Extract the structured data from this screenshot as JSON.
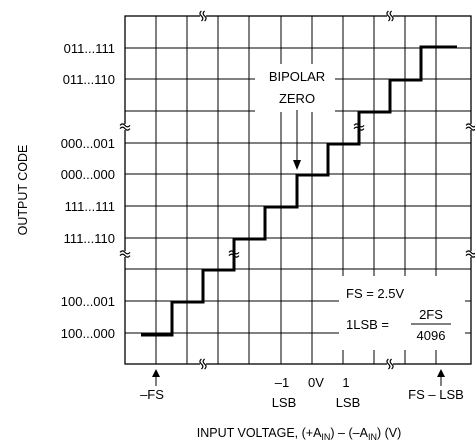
{
  "diagram": {
    "y_axis_title": "OUTPUT CODE",
    "x_axis_title": "INPUT VOLTAGE, (+A",
    "x_axis_title_sub1": "IN",
    "x_axis_title_mid": ") – (–A",
    "x_axis_title_sub2": "IN",
    "x_axis_title_end": ") (V)",
    "y_codes": [
      {
        "label": "011...111",
        "row": 1
      },
      {
        "label": "011...110",
        "row": 2
      },
      {
        "label": "000...001",
        "row": 4
      },
      {
        "label": "000...000",
        "row": 5
      },
      {
        "label": "111...111",
        "row": 6
      },
      {
        "label": "111...110",
        "row": 7
      },
      {
        "label": "100...001",
        "row": 9
      },
      {
        "label": "100...000",
        "row": 10
      }
    ],
    "x_labels": {
      "neg_fs": "–FS",
      "minus_one": "–1",
      "zero": "0V",
      "plus_one": "1",
      "lsb": "LSB",
      "fs_minus_lsb": "FS – LSB"
    },
    "annotation_bipolar_zero": {
      "line1": "BIPOLAR",
      "line2": "ZERO"
    },
    "legend": {
      "fs_line": "FS = 2.5V",
      "lsb_prefix": "1LSB =",
      "numerator": "2FS",
      "denominator": "4096"
    }
  }
}
